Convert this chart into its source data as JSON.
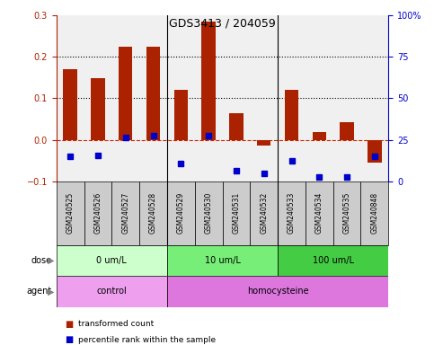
{
  "title": "GDS3413 / 204059",
  "categories": [
    "GSM240525",
    "GSM240526",
    "GSM240527",
    "GSM240528",
    "GSM240529",
    "GSM240530",
    "GSM240531",
    "GSM240532",
    "GSM240533",
    "GSM240534",
    "GSM240535",
    "GSM240848"
  ],
  "red_values": [
    0.17,
    0.148,
    0.225,
    0.225,
    0.12,
    0.285,
    0.065,
    -0.015,
    0.12,
    0.018,
    0.042,
    -0.055
  ],
  "blue_squares_low": [
    -0.04,
    -0.038,
    null,
    null,
    -0.058,
    null,
    -0.075,
    -0.082,
    -0.05,
    -0.09,
    -0.09,
    -0.04
  ],
  "blue_squares_mid": [
    null,
    null,
    0.005,
    0.01,
    null,
    0.01,
    null,
    null,
    null,
    null,
    null,
    null
  ],
  "dose_groups": [
    {
      "label": "0 um/L",
      "start": 0,
      "end": 3,
      "color": "#ccffcc"
    },
    {
      "label": "10 um/L",
      "start": 4,
      "end": 7,
      "color": "#77ee77"
    },
    {
      "label": "100 um/L",
      "start": 8,
      "end": 11,
      "color": "#44cc44"
    }
  ],
  "agent_groups": [
    {
      "label": "control",
      "start": 0,
      "end": 3,
      "color": "#eea0ee"
    },
    {
      "label": "homocysteine",
      "start": 4,
      "end": 11,
      "color": "#dd77dd"
    }
  ],
  "ylim_left": [
    -0.1,
    0.3
  ],
  "ylim_right": [
    0,
    100
  ],
  "yticks_left": [
    -0.1,
    0.0,
    0.1,
    0.2,
    0.3
  ],
  "yticks_right": [
    0,
    25,
    50,
    75,
    100
  ],
  "red_color": "#AA2200",
  "blue_color": "#0000CC",
  "hline_color": "#CC2200",
  "dot_color": "#000000",
  "bg_color": "#ffffff",
  "plot_bg_color": "#f0f0f0",
  "label_bg_color": "#cccccc",
  "legend": [
    {
      "label": "transformed count",
      "color": "#AA2200"
    },
    {
      "label": "percentile rank within the sample",
      "color": "#0000CC"
    }
  ],
  "dose_label": "dose",
  "agent_label": "agent",
  "group_separators": [
    3.5,
    7.5
  ]
}
